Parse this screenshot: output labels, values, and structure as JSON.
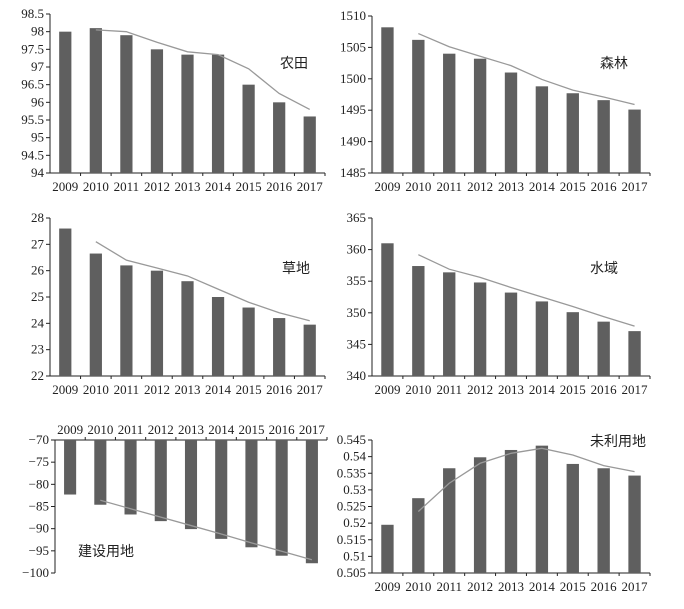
{
  "chart_data": [
    {
      "type": "bar",
      "title": "农田",
      "categories": [
        "2009",
        "2010",
        "2011",
        "2012",
        "2013",
        "2014",
        "2015",
        "2016",
        "2017"
      ],
      "values": [
        98.0,
        98.1,
        97.9,
        97.5,
        97.35,
        97.35,
        96.5,
        96.0,
        95.6
      ],
      "trend": [
        null,
        98.05,
        98.0,
        97.7,
        97.43,
        97.35,
        96.95,
        96.25,
        95.8
      ],
      "ylim": [
        94,
        98.5
      ],
      "ystep": 0.5,
      "yticks": [
        "94",
        "94.5",
        "95",
        "95.5",
        "96",
        "96.5",
        "97",
        "97.5",
        "98",
        "98.5"
      ],
      "bar_color": "#5f5f5f",
      "trend_color": "#999999"
    },
    {
      "type": "bar",
      "title": "森林",
      "categories": [
        "2009",
        "2010",
        "2011",
        "2012",
        "2013",
        "2014",
        "2015",
        "2016",
        "2017"
      ],
      "values": [
        1508.2,
        1506.2,
        1504.0,
        1503.2,
        1501.0,
        1498.8,
        1497.7,
        1496.6,
        1495.1
      ],
      "trend": [
        null,
        1507.2,
        1505.1,
        1503.6,
        1502.1,
        1499.9,
        1498.2,
        1497.1,
        1495.9
      ],
      "ylim": [
        1485,
        1510
      ],
      "ystep": 5,
      "yticks": [
        "1485",
        "1490",
        "1495",
        "1500",
        "1505",
        "1510"
      ],
      "bar_color": "#5f5f5f",
      "trend_color": "#999999"
    },
    {
      "type": "bar",
      "title": "草地",
      "categories": [
        "2009",
        "2010",
        "2011",
        "2012",
        "2013",
        "2014",
        "2015",
        "2016",
        "2017"
      ],
      "values": [
        27.6,
        26.65,
        26.2,
        26.0,
        25.6,
        25.0,
        24.6,
        24.2,
        23.95
      ],
      "trend": [
        null,
        27.1,
        26.4,
        26.1,
        25.8,
        25.3,
        24.8,
        24.4,
        24.1
      ],
      "ylim": [
        22,
        28
      ],
      "ystep": 1,
      "yticks": [
        "22",
        "23",
        "24",
        "25",
        "26",
        "27",
        "28"
      ],
      "bar_color": "#5f5f5f",
      "trend_color": "#999999"
    },
    {
      "type": "bar",
      "title": "水域",
      "categories": [
        "2009",
        "2010",
        "2011",
        "2012",
        "2013",
        "2014",
        "2015",
        "2016",
        "2017"
      ],
      "values": [
        361.0,
        357.4,
        356.4,
        354.8,
        353.2,
        351.8,
        350.1,
        348.6,
        347.1
      ],
      "trend": [
        null,
        359.2,
        356.9,
        355.6,
        354.0,
        352.5,
        351.0,
        349.4,
        347.9
      ],
      "ylim": [
        340,
        365
      ],
      "ystep": 5,
      "yticks": [
        "340",
        "345",
        "350",
        "355",
        "360",
        "365"
      ],
      "bar_color": "#5f5f5f",
      "trend_color": "#999999"
    },
    {
      "type": "bar",
      "title": "建设用地",
      "categories": [
        "2009",
        "2010",
        "2011",
        "2012",
        "2013",
        "2014",
        "2015",
        "2016",
        "2017"
      ],
      "values": [
        -82.3,
        -84.6,
        -86.8,
        -88.3,
        -90.1,
        -92.3,
        -94.2,
        -96.1,
        -97.8
      ],
      "trend": [
        null,
        -83.6,
        -85.5,
        -87.4,
        -89.3,
        -91.2,
        -93.2,
        -95.1,
        -97.0
      ],
      "ylim": [
        -100,
        -70
      ],
      "ystep": 5,
      "yticks": [
        "-100",
        "-95",
        "-90",
        "-85",
        "-80",
        "-75",
        "-70"
      ],
      "bar_color": "#5f5f5f",
      "trend_color": "#999999"
    },
    {
      "type": "bar",
      "title": "未利用地",
      "categories": [
        "2009",
        "2010",
        "2011",
        "2012",
        "2013",
        "2014",
        "2015",
        "2016",
        "2017"
      ],
      "values": [
        0.5195,
        0.5275,
        0.5365,
        0.5398,
        0.542,
        0.5433,
        0.5378,
        0.5365,
        0.5343
      ],
      "trend": [
        null,
        0.5235,
        0.532,
        0.538,
        0.541,
        0.5425,
        0.5405,
        0.5373,
        0.5355
      ],
      "ylim": [
        0.505,
        0.545
      ],
      "ystep": 0.005,
      "yticks": [
        "0.505",
        "0.51",
        "0.515",
        "0.52",
        "0.525",
        "0.53",
        "0.535",
        "0.54",
        "0.545"
      ],
      "bar_color": "#5f5f5f",
      "trend_color": "#999999"
    }
  ]
}
